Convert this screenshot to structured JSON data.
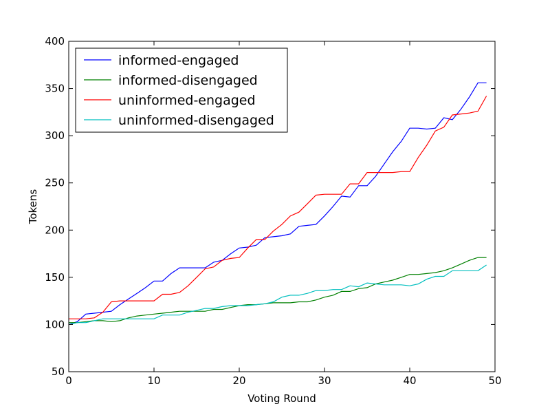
{
  "chart_data": {
    "type": "line",
    "title": "",
    "xlabel": "Voting Round",
    "ylabel": "Tokens",
    "xlim": [
      0,
      50
    ],
    "ylim": [
      50,
      400
    ],
    "xticks": [
      0,
      10,
      20,
      30,
      40,
      50
    ],
    "yticks": [
      50,
      100,
      150,
      200,
      250,
      300,
      350,
      400
    ],
    "grid": false,
    "legend": "top-left",
    "x": [
      0,
      1,
      2,
      3,
      4,
      5,
      6,
      7,
      8,
      9,
      10,
      11,
      12,
      13,
      14,
      15,
      16,
      17,
      18,
      19,
      20,
      21,
      22,
      23,
      24,
      25,
      26,
      27,
      28,
      29,
      30,
      31,
      32,
      33,
      34,
      35,
      36,
      37,
      38,
      39,
      40,
      41,
      42,
      43,
      44,
      45,
      46,
      47,
      48,
      49
    ],
    "series": [
      {
        "name": "informed-engaged",
        "color": "#0000ff",
        "values": [
          100,
          103,
          111,
          112,
          113,
          114,
          121,
          127,
          133,
          139,
          146,
          146,
          154,
          160,
          160,
          160,
          160,
          166,
          168,
          175,
          181,
          182,
          184,
          192,
          193,
          194,
          196,
          204,
          205,
          206,
          215,
          225,
          236,
          235,
          247,
          247,
          257,
          270,
          283,
          294,
          308,
          308,
          307,
          308,
          319,
          317,
          328,
          341,
          356,
          356
        ]
      },
      {
        "name": "informed-disengaged",
        "color": "#008000",
        "values": [
          102,
          102,
          103,
          104,
          104,
          103,
          104,
          107,
          109,
          110,
          111,
          112,
          113,
          114,
          114,
          114,
          114,
          116,
          116,
          118,
          120,
          121,
          121,
          122,
          123,
          123,
          123,
          124,
          124,
          126,
          129,
          131,
          135,
          135,
          138,
          139,
          143,
          145,
          147,
          150,
          153,
          153,
          154,
          155,
          157,
          160,
          164,
          168,
          171,
          171
        ]
      },
      {
        "name": "uninformed-engaged",
        "color": "#ff0000",
        "values": [
          106,
          106,
          106,
          107,
          113,
          124,
          125,
          125,
          125,
          125,
          125,
          132,
          132,
          134,
          141,
          150,
          159,
          161,
          168,
          170,
          171,
          181,
          190,
          190,
          199,
          206,
          215,
          219,
          228,
          237,
          238,
          238,
          238,
          249,
          249,
          261,
          261,
          261,
          261,
          262,
          262,
          277,
          290,
          305,
          309,
          322,
          323,
          324,
          326,
          342
        ]
      },
      {
        "name": "uninformed-disengaged",
        "color": "#00bfbf",
        "values": [
          100,
          102,
          102,
          104,
          106,
          106,
          106,
          106,
          106,
          106,
          106,
          110,
          110,
          110,
          113,
          115,
          117,
          117,
          119,
          120,
          120,
          120,
          121,
          122,
          124,
          129,
          131,
          131,
          133,
          136,
          136,
          137,
          137,
          141,
          140,
          144,
          143,
          142,
          142,
          142,
          141,
          143,
          148,
          151,
          151,
          157,
          157,
          157,
          157,
          163
        ]
      }
    ]
  }
}
